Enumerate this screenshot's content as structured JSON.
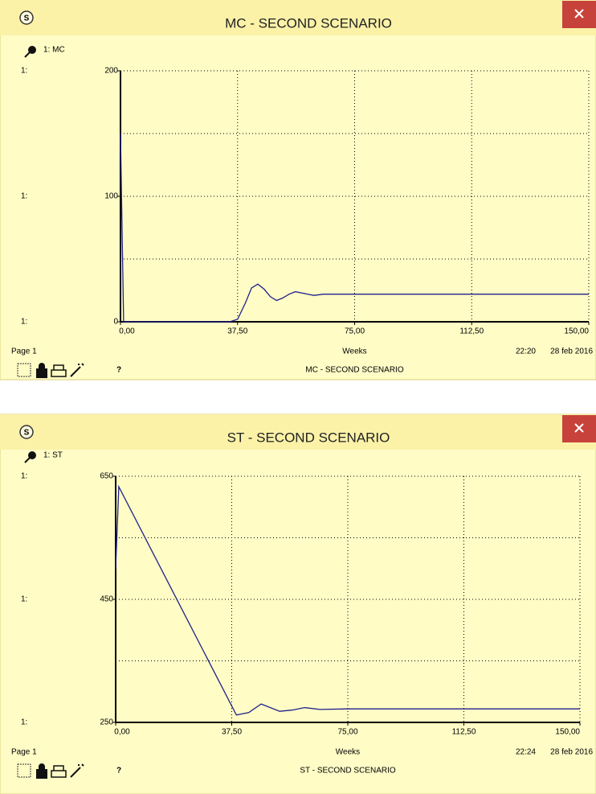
{
  "chart_data": [
    {
      "type": "line",
      "window_title": "MC - SECOND SCENARIO",
      "icon_label": "S",
      "series": [
        {
          "name": "1: MC",
          "color": "#20208a",
          "x": [
            0,
            1,
            2,
            35,
            37.5,
            40,
            42,
            44,
            46,
            48,
            50,
            52,
            54,
            56,
            58,
            60,
            62,
            65,
            70,
            80,
            90,
            100,
            110,
            120,
            130,
            140,
            150
          ],
          "values": [
            150,
            0,
            0,
            0,
            2,
            15,
            27,
            30,
            26,
            20,
            17,
            19,
            22,
            24,
            23,
            22,
            21,
            22,
            22,
            22,
            22,
            22,
            22,
            22,
            22,
            22,
            22
          ]
        }
      ],
      "axis_marker": "1:",
      "xlim": [
        0,
        150
      ],
      "ylim": [
        0,
        200
      ],
      "xticks": [
        {
          "value": 0,
          "label": "0,00"
        },
        {
          "value": 37.5,
          "label": "37,50"
        },
        {
          "value": 75,
          "label": "75,00"
        },
        {
          "value": 112.5,
          "label": "112,50"
        },
        {
          "value": 150,
          "label": "150,00"
        }
      ],
      "yticks": [
        0,
        100,
        200
      ],
      "ygrid": [
        0,
        50,
        100,
        150,
        200
      ],
      "grid": true,
      "xlabel": "Weeks",
      "page_label": "Page 1",
      "time": "22:20",
      "date": "28 feb 2016",
      "footer_title": "MC - SECOND SCENARIO",
      "help": "?"
    },
    {
      "type": "line",
      "window_title": "ST - SECOND SCENARIO",
      "icon_label": "S",
      "series": [
        {
          "name": "1: ST",
          "color": "#20208a",
          "x": [
            0,
            1,
            39,
            43,
            47,
            53,
            57,
            61,
            66,
            75,
            100,
            125,
            150
          ],
          "values": [
            500,
            633,
            262,
            266,
            280,
            268,
            270,
            274,
            271,
            272,
            272,
            272,
            272
          ]
        }
      ],
      "axis_marker": "1:",
      "xlim": [
        0,
        150
      ],
      "ylim": [
        250,
        650
      ],
      "xticks": [
        {
          "value": 0,
          "label": "0,00"
        },
        {
          "value": 37.5,
          "label": "37,50"
        },
        {
          "value": 75,
          "label": "75,00"
        },
        {
          "value": 112.5,
          "label": "112,50"
        },
        {
          "value": 150,
          "label": "150,00"
        }
      ],
      "yticks": [
        250,
        450,
        650
      ],
      "ygrid": [
        250,
        350,
        450,
        550,
        650
      ],
      "grid": true,
      "xlabel": "Weeks",
      "page_label": "Page 1",
      "time": "22:24",
      "date": "28 feb 2016",
      "footer_title": "ST - SECOND SCENARIO",
      "help": "?"
    }
  ]
}
